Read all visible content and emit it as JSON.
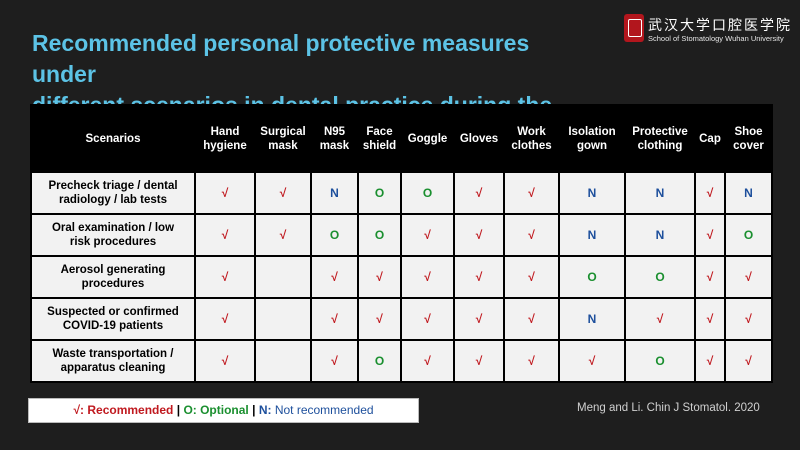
{
  "title_lines": [
    "Recommended personal protective measures under",
    "different scenarios in dental practice during the outbreak"
  ],
  "logo": {
    "chinese": "武汉大学口腔医学院",
    "english": "School of Stomatology Wuhan University",
    "seal_color": "#b2161d"
  },
  "table": {
    "headers": [
      [
        "Scenarios"
      ],
      [
        "Hand",
        "hygiene"
      ],
      [
        "Surgical",
        "mask"
      ],
      [
        "N95",
        "mask"
      ],
      [
        "Face",
        "shield"
      ],
      [
        "Goggle"
      ],
      [
        "Gloves"
      ],
      [
        "Work",
        "clothes"
      ],
      [
        "Isolation",
        "gown"
      ],
      [
        "Protective",
        "clothing"
      ],
      [
        "Cap"
      ],
      [
        "Shoe",
        "cover"
      ]
    ],
    "rows": [
      {
        "scenario": [
          "Precheck triage / dental",
          "radiology / lab tests"
        ],
        "cells": [
          "√",
          "√",
          "N",
          "O",
          "O",
          "√",
          "√",
          "N",
          "N",
          "√",
          "N"
        ]
      },
      {
        "scenario": [
          "Oral examination / low",
          "risk procedures"
        ],
        "cells": [
          "√",
          "√",
          "O",
          "O",
          "√",
          "√",
          "√",
          "N",
          "N",
          "√",
          "O"
        ]
      },
      {
        "scenario": [
          "Aerosol generating",
          "procedures"
        ],
        "cells": [
          "√",
          "",
          "√",
          "√",
          "√",
          "√",
          "√",
          "O",
          "O",
          "√",
          "√"
        ]
      },
      {
        "scenario": [
          "Suspected or confirmed",
          "COVID-19 patients"
        ],
        "cells": [
          "√",
          "",
          "√",
          "√",
          "√",
          "√",
          "√",
          "N",
          "√",
          "√",
          "√"
        ]
      },
      {
        "scenario": [
          "Waste transportation /",
          "apparatus cleaning"
        ],
        "cells": [
          "√",
          "",
          "√",
          "O",
          "√",
          "√",
          "√",
          "√",
          "O",
          "√",
          "√"
        ]
      }
    ]
  },
  "legend": {
    "recommended": "√: Recommended",
    "separator": "|",
    "optional": "O: Optional",
    "not_key": "N:",
    "not_text": "Not recommended"
  },
  "citation": "Meng and Li. Chin J Stomatol. 2020",
  "colors": {
    "background": "#1e1e1e",
    "title": "#5cc3e6",
    "recommended": "#c0191f",
    "optional": "#1a8f2f",
    "not_recommended": "#1d4f9c"
  }
}
